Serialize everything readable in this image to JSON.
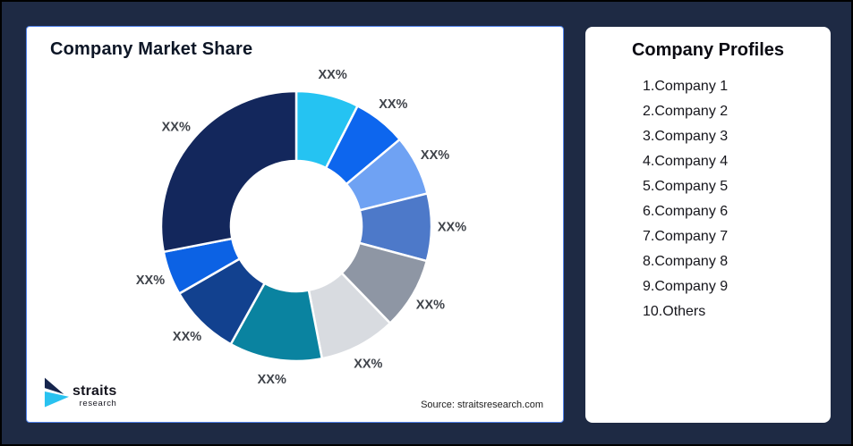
{
  "page": {
    "background_color": "#1e2a44",
    "frame_border_color": "#000000",
    "card_border_color": "#4e80e8"
  },
  "market_share_card": {
    "title": "Company Market Share",
    "source_text": "Source: straitsresearch.com",
    "logo": {
      "wordmark": "straits",
      "subtext": "research",
      "icon_navy": "#16254d",
      "icon_cyan": "#29c2f0"
    }
  },
  "profiles_card": {
    "title": "Company Profiles",
    "items": [
      "1.Company 1",
      "2.Company 2",
      "3.Company 3",
      "4.Company 4",
      "5.Company 5",
      "6.Company 6",
      "7.Company 7",
      "8.Company 8",
      "9.Company 9",
      "10.Others"
    ]
  },
  "chart_data": {
    "type": "pie",
    "subtype": "donut",
    "title": "Company Market Share",
    "value_label_text": "XX%",
    "legend_position": "right-panel",
    "center": [
      301,
      223
    ],
    "outer_radius": 151,
    "inner_radius": 73,
    "label_radius": 174,
    "label_color": "#3f434a",
    "slice_gap_color": "#ffffff",
    "start_angle_deg": 0,
    "direction": "clockwise",
    "segments": [
      {
        "name": "Company 1",
        "label": "XX%",
        "sweep_deg": 27,
        "color": "#25c3f2"
      },
      {
        "name": "Company 2",
        "label": "XX%",
        "sweep_deg": 23,
        "color": "#0d66ee"
      },
      {
        "name": "Company 3",
        "label": "XX%",
        "sweep_deg": 26,
        "color": "#6fa2f3"
      },
      {
        "name": "Company 4",
        "label": "XX%",
        "sweep_deg": 29,
        "color": "#4d79c9"
      },
      {
        "name": "Company 5",
        "label": "XX%",
        "sweep_deg": 31,
        "color": "#8e96a4"
      },
      {
        "name": "Company 6",
        "label": "XX%",
        "sweep_deg": 33,
        "color": "#d8dbe0"
      },
      {
        "name": "Company 7",
        "label": "XX%",
        "sweep_deg": 40,
        "color": "#0a83a0"
      },
      {
        "name": "Company 8",
        "label": "XX%",
        "sweep_deg": 31,
        "color": "#12418f"
      },
      {
        "name": "Company 9",
        "label": "XX%",
        "sweep_deg": 19,
        "color": "#0c62e4"
      },
      {
        "name": "Others",
        "label": "XX%",
        "sweep_deg": 101,
        "color": "#13275c"
      }
    ]
  }
}
